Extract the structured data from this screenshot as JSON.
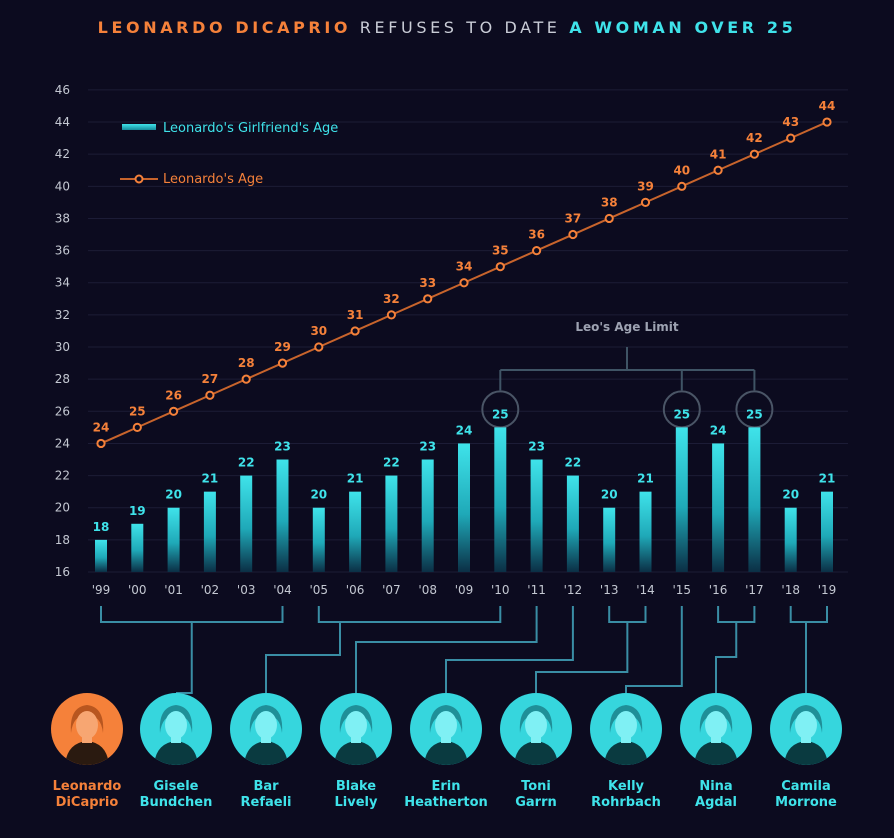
{
  "title": {
    "part1": "LEONARDO DICAPRIO",
    "part2": " REFUSES TO DATE ",
    "part3": "A WOMAN OVER 25"
  },
  "colors": {
    "background": "#0c0b1f",
    "leo_orange": "#f5813a",
    "girlfriend_cyan": "#3fe3ea",
    "connector": "#3a8ea5",
    "gridline": "#1c1c36"
  },
  "chart_data": {
    "type": "bar+line",
    "categories": [
      "'99",
      "'00",
      "'01",
      "'02",
      "'03",
      "'04",
      "'05",
      "'06",
      "'07",
      "'08",
      "'09",
      "'10",
      "'11",
      "'12",
      "'13",
      "'14",
      "'15",
      "'16",
      "'17",
      "'18",
      "'19"
    ],
    "series": [
      {
        "name": "Leonardo's Girlfriend's Age",
        "type": "bar",
        "values": [
          18,
          19,
          20,
          21,
          22,
          23,
          20,
          21,
          22,
          23,
          24,
          25,
          23,
          22,
          20,
          21,
          25,
          24,
          25,
          20,
          21
        ]
      },
      {
        "name": "Leonardo's Age",
        "type": "line",
        "values": [
          24,
          25,
          26,
          27,
          28,
          29,
          30,
          31,
          32,
          33,
          34,
          35,
          36,
          37,
          38,
          39,
          40,
          41,
          42,
          43,
          44
        ]
      }
    ],
    "ylim": [
      16,
      46
    ],
    "yticks": [
      16,
      18,
      20,
      22,
      24,
      26,
      28,
      30,
      32,
      34,
      36,
      38,
      40,
      42,
      44,
      46
    ],
    "legend_position": "top-left",
    "grid": true,
    "annotation": {
      "text": "Leo's Age Limit",
      "value": 25,
      "highlighted": [
        "'10",
        "'15",
        "'17"
      ]
    }
  },
  "people": [
    {
      "name_line1": "Leonardo",
      "name_line2": "DiCaprio",
      "role": "leo",
      "icon": "leonardo-dicaprio-photo"
    },
    {
      "name_line1": "Gisele",
      "name_line2": "Bundchen",
      "years": [
        "'99",
        "'04"
      ],
      "icon": "gisele-bundchen-photo"
    },
    {
      "name_line1": "Bar",
      "name_line2": "Refaeli",
      "years": [
        "'05",
        "'10"
      ],
      "icon": "bar-refaeli-photo"
    },
    {
      "name_line1": "Blake",
      "name_line2": "Lively",
      "years": [
        "'11"
      ],
      "icon": "blake-lively-photo"
    },
    {
      "name_line1": "Erin",
      "name_line2": "Heatherton",
      "years": [
        "'12"
      ],
      "icon": "erin-heatherton-photo"
    },
    {
      "name_line1": "Toni",
      "name_line2": "Garrn",
      "years": [
        "'13",
        "'14"
      ],
      "icon": "toni-garrn-photo"
    },
    {
      "name_line1": "Kelly",
      "name_line2": "Rohrbach",
      "years": [
        "'15"
      ],
      "icon": "kelly-rohrbach-photo"
    },
    {
      "name_line1": "Nina",
      "name_line2": "Agdal",
      "years": [
        "'16",
        "'17"
      ],
      "icon": "nina-agdal-photo"
    },
    {
      "name_line1": "Camila",
      "name_line2": "Morrone",
      "years": [
        "'18",
        "'19"
      ],
      "icon": "camila-morrone-photo"
    }
  ]
}
